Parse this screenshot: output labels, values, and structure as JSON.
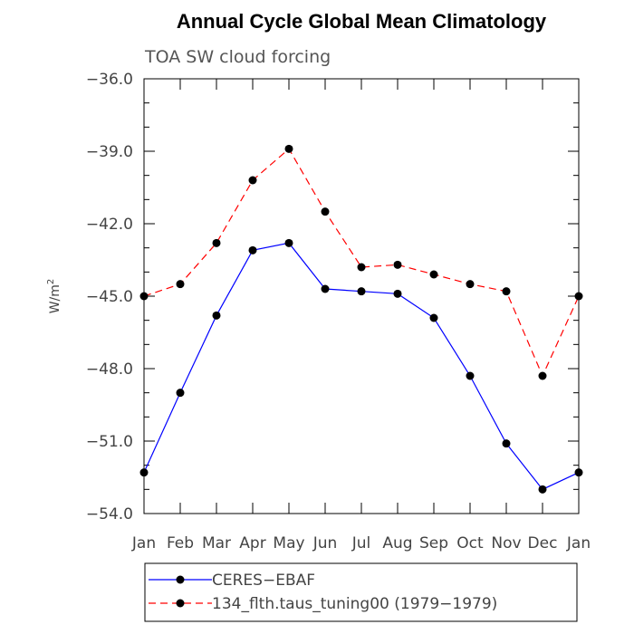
{
  "chart_data": {
    "type": "line",
    "title": "Annual Cycle Global Mean Climatology",
    "subtitle": "TOA SW cloud forcing",
    "ylabel_base": "W/m",
    "ylabel_exp": "2",
    "xlabel": "",
    "categories": [
      "Jan",
      "Feb",
      "Mar",
      "Apr",
      "May",
      "Jun",
      "Jul",
      "Aug",
      "Sep",
      "Oct",
      "Nov",
      "Dec",
      "Jan"
    ],
    "ylim": [
      -54.0,
      -36.0
    ],
    "yticks": [
      -54.0,
      -51.0,
      -48.0,
      -45.0,
      -42.0,
      -39.0,
      -36.0
    ],
    "ytick_labels": [
      "−54.0",
      "−51.0",
      "−48.0",
      "−45.0",
      "−42.0",
      "−39.0",
      "−36.0"
    ],
    "series": [
      {
        "name": "CERES−EBAF",
        "color": "#0000ff",
        "dash": "solid",
        "values": [
          -52.3,
          -49.0,
          -45.8,
          -43.1,
          -42.8,
          -44.7,
          -44.8,
          -44.9,
          -45.9,
          -48.3,
          -51.1,
          -53.0,
          -52.3
        ]
      },
      {
        "name": "134_flth.taus_tuning00 (1979−1979)",
        "color": "#ff0000",
        "dash": "dashed",
        "values": [
          -45.0,
          -44.5,
          -42.8,
          -40.2,
          -38.9,
          -41.5,
          -43.8,
          -43.7,
          -44.1,
          -44.5,
          -44.8,
          -48.3,
          -45.0
        ]
      }
    ],
    "legend": {
      "placement": "bottom",
      "entries": [
        "CERES−EBAF",
        "134_flth.taus_tuning00 (1979−1979)"
      ]
    },
    "grid": false
  }
}
